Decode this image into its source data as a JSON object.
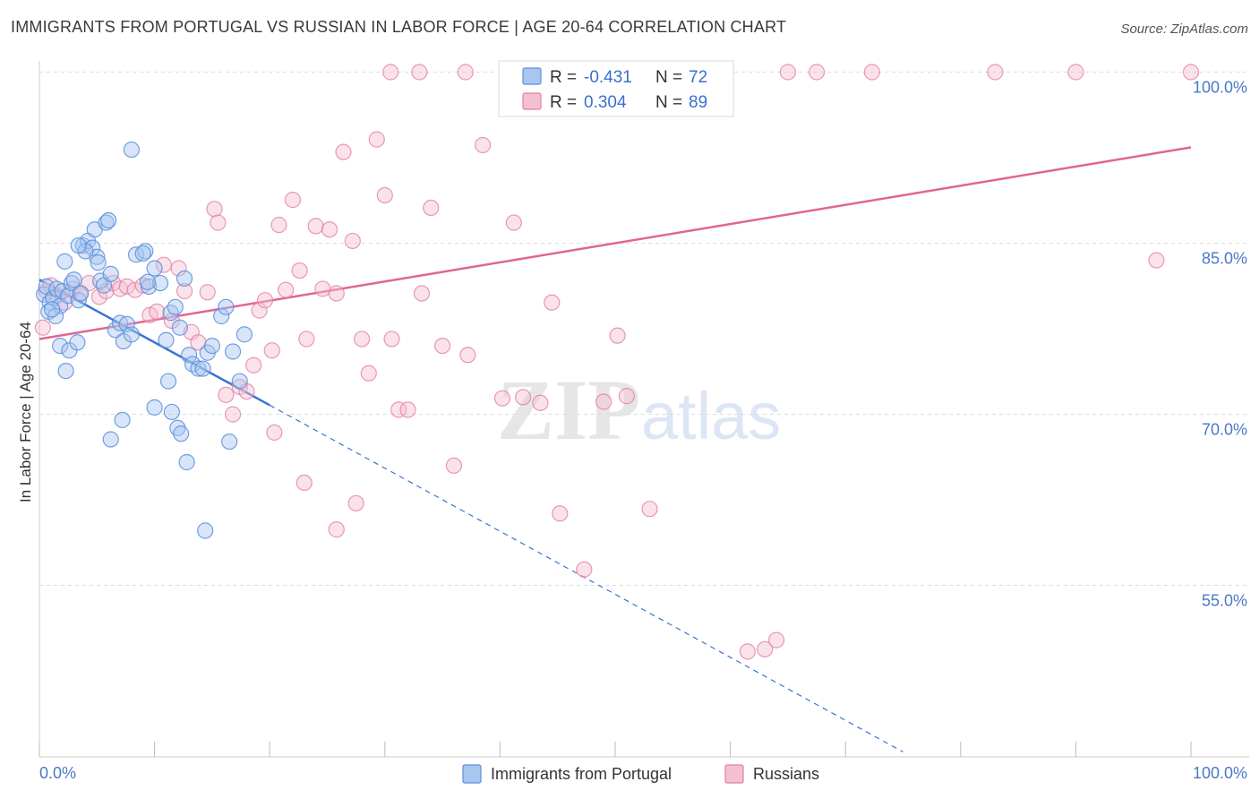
{
  "header": {
    "title": "IMMIGRANTS FROM PORTUGAL VS RUSSIAN IN LABOR FORCE | AGE 20-64 CORRELATION CHART",
    "source": "Source: ZipAtlas.com"
  },
  "watermark": {
    "zip": "ZIP",
    "atlas": "atlas"
  },
  "colors": {
    "blue": "#5b8fdc",
    "blue_fill": "#a9c6f0",
    "blue_line": "#3a74d0",
    "pink": "#e57fa3",
    "pink_fill": "#f5bfd2",
    "pink_line": "#e0668f",
    "grid": "#dddddd",
    "tick": "#4a78c8"
  },
  "legend": {
    "r_label": "R =",
    "n_label": "N =",
    "series_a": {
      "r": "-0.431",
      "n": "72"
    },
    "series_b": {
      "r": "0.304",
      "n": "89"
    }
  },
  "chart_data": {
    "type": "scatter",
    "title": "IMMIGRANTS FROM PORTUGAL VS RUSSIAN IN LABOR FORCE | AGE 20-64 CORRELATION CHART",
    "xlabel": "",
    "ylabel": "In Labor Force | Age 20-64",
    "xlim": [
      0,
      100
    ],
    "ylim": [
      40,
      102
    ],
    "x_tick_labels": [
      "0.0%",
      "100.0%"
    ],
    "y_ticks": [
      55,
      70,
      85,
      100
    ],
    "y_tick_labels": [
      "55.0%",
      "70.0%",
      "85.0%",
      "100.0%"
    ],
    "legend": [
      "Immigrants from Portugal",
      "Russians"
    ],
    "series": [
      {
        "name": "Immigrants from Portugal",
        "r": -0.431,
        "n": 72,
        "trend": {
          "x0": 0,
          "y0": 81.8,
          "x1": 20,
          "y1": 70.8,
          "dash_to_x": 75,
          "dash_to_y": 40.4
        },
        "points": [
          [
            0.4,
            80.5
          ],
          [
            0.6,
            81.2
          ],
          [
            0.9,
            79.8
          ],
          [
            1.2,
            80.2
          ],
          [
            1.5,
            81.0
          ],
          [
            1.8,
            79.5
          ],
          [
            2.0,
            80.8
          ],
          [
            2.2,
            83.4
          ],
          [
            2.5,
            80.4
          ],
          [
            2.8,
            81.5
          ],
          [
            0.8,
            79.0
          ],
          [
            1.4,
            78.6
          ],
          [
            3.0,
            81.8
          ],
          [
            3.4,
            80.0
          ],
          [
            3.8,
            84.8
          ],
          [
            4.2,
            85.2
          ],
          [
            4.6,
            84.6
          ],
          [
            5.0,
            83.8
          ],
          [
            5.3,
            81.7
          ],
          [
            5.6,
            81.3
          ],
          [
            4.0,
            84.3
          ],
          [
            4.8,
            86.2
          ],
          [
            5.8,
            86.8
          ],
          [
            6.2,
            82.3
          ],
          [
            6.6,
            77.4
          ],
          [
            7.0,
            78.0
          ],
          [
            7.3,
            76.4
          ],
          [
            7.6,
            77.9
          ],
          [
            8.0,
            77.0
          ],
          [
            8.4,
            84.0
          ],
          [
            9.2,
            84.3
          ],
          [
            9.5,
            81.2
          ],
          [
            10.0,
            82.8
          ],
          [
            10.5,
            81.5
          ],
          [
            11.0,
            76.5
          ],
          [
            11.4,
            78.9
          ],
          [
            11.8,
            79.4
          ],
          [
            12.2,
            77.6
          ],
          [
            12.6,
            81.9
          ],
          [
            13.0,
            75.2
          ],
          [
            13.3,
            74.4
          ],
          [
            13.8,
            74.0
          ],
          [
            14.2,
            74.0
          ],
          [
            14.6,
            75.4
          ],
          [
            15.0,
            76.0
          ],
          [
            15.8,
            78.6
          ],
          [
            16.2,
            79.4
          ],
          [
            16.8,
            75.5
          ],
          [
            17.4,
            72.9
          ],
          [
            17.8,
            77.0
          ],
          [
            1.8,
            76.0
          ],
          [
            2.3,
            73.8
          ],
          [
            2.6,
            75.6
          ],
          [
            3.3,
            76.3
          ],
          [
            5.1,
            83.3
          ],
          [
            9.0,
            84.1
          ],
          [
            9.4,
            81.6
          ],
          [
            11.5,
            70.2
          ],
          [
            12.0,
            68.8
          ],
          [
            12.3,
            68.3
          ],
          [
            7.2,
            69.5
          ],
          [
            6.2,
            67.8
          ],
          [
            10.0,
            70.6
          ],
          [
            16.5,
            67.6
          ],
          [
            12.8,
            65.8
          ],
          [
            11.2,
            72.9
          ],
          [
            14.4,
            59.8
          ],
          [
            8.0,
            93.2
          ],
          [
            6.0,
            87.0
          ],
          [
            3.4,
            84.8
          ],
          [
            1.1,
            79.2
          ],
          [
            3.6,
            80.6
          ]
        ]
      },
      {
        "name": "Russians",
        "r": 0.304,
        "n": 89,
        "trend": {
          "x0": 0,
          "y0": 76.6,
          "x1": 100,
          "y1": 93.4
        },
        "points": [
          [
            0.3,
            77.6
          ],
          [
            0.6,
            80.8
          ],
          [
            1.0,
            81.3
          ],
          [
            1.6,
            80.4
          ],
          [
            2.2,
            79.8
          ],
          [
            2.9,
            81.0
          ],
          [
            3.5,
            80.6
          ],
          [
            4.3,
            81.5
          ],
          [
            5.2,
            80.3
          ],
          [
            5.8,
            80.8
          ],
          [
            6.4,
            81.5
          ],
          [
            7.0,
            81.0
          ],
          [
            7.6,
            81.2
          ],
          [
            8.3,
            80.9
          ],
          [
            9.0,
            81.3
          ],
          [
            9.6,
            78.7
          ],
          [
            10.2,
            79.0
          ],
          [
            10.8,
            83.1
          ],
          [
            11.5,
            78.2
          ],
          [
            12.1,
            82.8
          ],
          [
            12.6,
            80.8
          ],
          [
            13.2,
            77.2
          ],
          [
            13.8,
            76.3
          ],
          [
            14.6,
            80.7
          ],
          [
            15.2,
            88.0
          ],
          [
            15.5,
            86.8
          ],
          [
            16.2,
            71.7
          ],
          [
            16.8,
            70.0
          ],
          [
            17.4,
            72.4
          ],
          [
            18.0,
            72.0
          ],
          [
            18.6,
            74.3
          ],
          [
            19.1,
            79.1
          ],
          [
            19.6,
            80.0
          ],
          [
            20.2,
            75.6
          ],
          [
            20.8,
            86.6
          ],
          [
            21.4,
            80.9
          ],
          [
            22.0,
            88.8
          ],
          [
            22.6,
            82.6
          ],
          [
            23.2,
            76.6
          ],
          [
            24.0,
            86.5
          ],
          [
            24.6,
            81.0
          ],
          [
            25.2,
            86.2
          ],
          [
            25.8,
            80.6
          ],
          [
            26.4,
            93.0
          ],
          [
            27.2,
            85.2
          ],
          [
            28.0,
            76.6
          ],
          [
            28.6,
            73.6
          ],
          [
            29.3,
            94.1
          ],
          [
            30.0,
            89.2
          ],
          [
            30.6,
            76.6
          ],
          [
            31.2,
            70.4
          ],
          [
            32.0,
            70.4
          ],
          [
            33.2,
            80.6
          ],
          [
            34.0,
            88.1
          ],
          [
            35.0,
            76.0
          ],
          [
            36.0,
            65.5
          ],
          [
            37.2,
            75.2
          ],
          [
            38.5,
            93.6
          ],
          [
            40.2,
            71.4
          ],
          [
            41.2,
            86.8
          ],
          [
            42.0,
            71.5
          ],
          [
            43.5,
            71.0
          ],
          [
            44.5,
            79.8
          ],
          [
            45.2,
            61.3
          ],
          [
            46.0,
            100.0
          ],
          [
            47.3,
            56.4
          ],
          [
            49.0,
            71.1
          ],
          [
            50.2,
            76.9
          ],
          [
            51.0,
            71.6
          ],
          [
            53.0,
            61.7
          ],
          [
            55.2,
            100.0
          ],
          [
            58.2,
            100.0
          ],
          [
            61.5,
            49.2
          ],
          [
            63.0,
            49.4
          ],
          [
            64.0,
            50.2
          ],
          [
            65.0,
            100.0
          ],
          [
            67.5,
            100.0
          ],
          [
            72.3,
            100.0
          ],
          [
            83.0,
            100.0
          ],
          [
            90.0,
            100.0
          ],
          [
            97.0,
            83.5
          ],
          [
            100.0,
            100.0
          ],
          [
            30.5,
            100.0
          ],
          [
            33.0,
            100.0
          ],
          [
            37.0,
            100.0
          ],
          [
            27.5,
            62.2
          ],
          [
            25.8,
            59.9
          ],
          [
            20.4,
            68.4
          ],
          [
            23.0,
            64.0
          ]
        ]
      }
    ]
  }
}
